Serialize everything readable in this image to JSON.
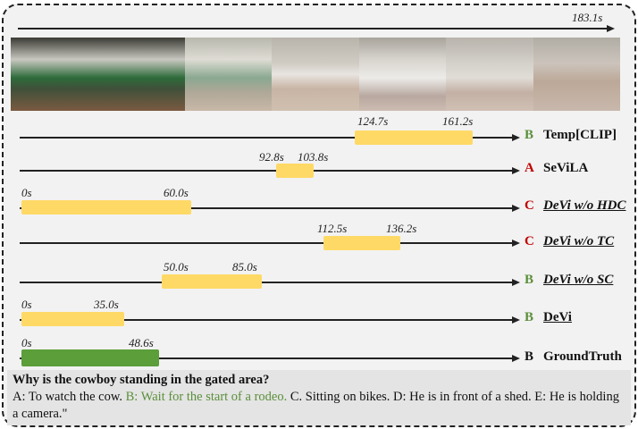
{
  "video_duration": "183.1s",
  "colors": {
    "prediction_bar": "#ffd966",
    "ground_truth_bar": "#5b9e3a",
    "correct": "#5b8f3a",
    "wrong": "#c00000"
  },
  "rows": [
    {
      "method": "Temp[CLIP]",
      "answer": "B",
      "correct": true,
      "start": "124.7s",
      "end": "161.2s"
    },
    {
      "method": "SeViLA",
      "answer": "A",
      "correct": false,
      "start": "92.8s",
      "end": "103.8s"
    },
    {
      "method": "DeVi w/o HDC",
      "answer": "C",
      "correct": false,
      "start": "0s",
      "end": "60.0s"
    },
    {
      "method": "DeVi w/o TC",
      "answer": "C",
      "correct": false,
      "start": "112.5s",
      "end": "136.2s"
    },
    {
      "method": "DeVi w/o SC",
      "answer": "B",
      "correct": true,
      "start": "50.0s",
      "end": "85.0s"
    },
    {
      "method": "DeVi",
      "answer": "B",
      "correct": true,
      "start": "0s",
      "end": "35.0s"
    },
    {
      "method": "GroundTruth",
      "answer": "B",
      "start": "0s",
      "end": "48.6s"
    }
  ],
  "question": {
    "text": "Why is the cowboy standing in the gated area?",
    "option_a": "A: To watch the cow.",
    "option_b": "B: Wait for the start of a rodeo.",
    "rest": "C. Sitting on bikes. D: He is in front of a shed. E: He is holding a camera.\""
  }
}
